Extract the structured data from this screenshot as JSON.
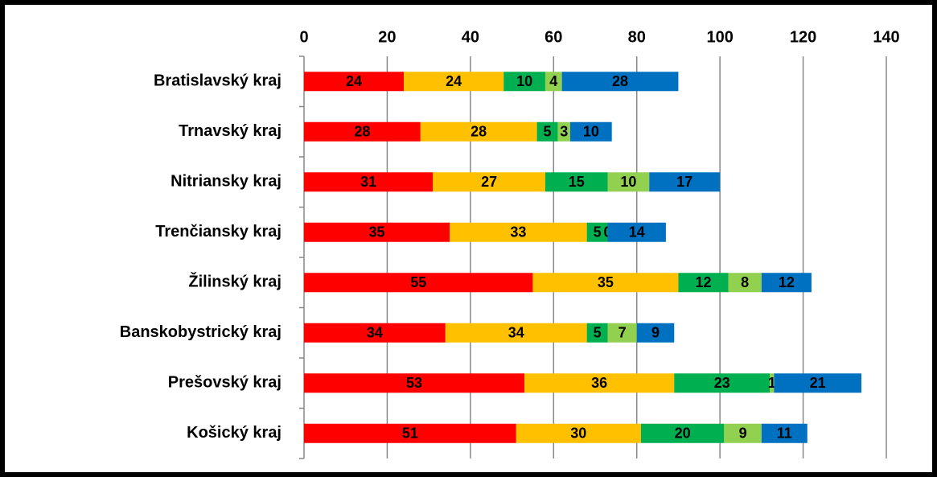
{
  "chart_data": {
    "type": "stacked-bar-horizontal",
    "categories": [
      "Bratislavský kraj",
      "Trnavský kraj",
      "Nitriansky kraj",
      "Trenčiansky kraj",
      "Žilinský kraj",
      "Banskobystrický kraj",
      "Prešovský kraj",
      "Košický kraj"
    ],
    "series": [
      {
        "color": "#ff0000",
        "values": [
          24,
          28,
          31,
          35,
          55,
          34,
          53,
          51
        ]
      },
      {
        "color": "#ffc000",
        "values": [
          24,
          28,
          27,
          33,
          35,
          34,
          36,
          30
        ]
      },
      {
        "color": "#00b050",
        "values": [
          10,
          5,
          15,
          5,
          12,
          5,
          23,
          20
        ]
      },
      {
        "color": "#92d050",
        "values": [
          4,
          3,
          10,
          0,
          8,
          7,
          1,
          9
        ]
      },
      {
        "color": "#0070c0",
        "values": [
          28,
          10,
          17,
          14,
          12,
          9,
          21,
          11
        ]
      }
    ],
    "xlim": [
      0,
      140
    ],
    "xticks": [
      0,
      20,
      40,
      60,
      80,
      100,
      120,
      140
    ],
    "grid": true
  }
}
